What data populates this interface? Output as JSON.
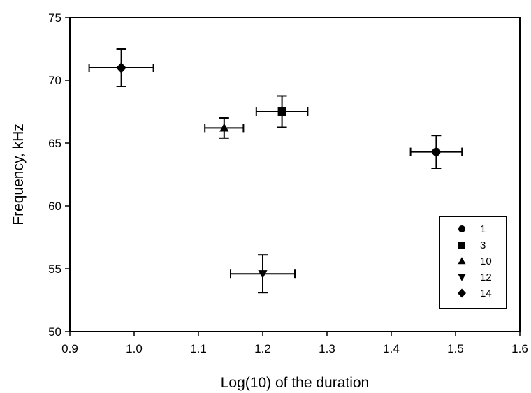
{
  "chart_data": {
    "type": "scatter",
    "xlabel": "Log(10) of the duration",
    "ylabel": "Frequency, kHz",
    "xlim": [
      0.9,
      1.6
    ],
    "ylim": [
      50,
      75
    ],
    "xticks": [
      "0.9",
      "1.0",
      "1.1",
      "1.2",
      "1.3",
      "1.4",
      "1.5",
      "1.6"
    ],
    "yticks": [
      "50",
      "55",
      "60",
      "65",
      "70",
      "75"
    ],
    "grid": false,
    "legend_position": "bottom-right",
    "series": [
      {
        "name": "1",
        "marker": "circle",
        "x": 1.47,
        "y": 64.3,
        "x_err": 0.04,
        "y_err": 1.3
      },
      {
        "name": "3",
        "marker": "square",
        "x": 1.23,
        "y": 67.5,
        "x_err": 0.04,
        "y_err": 1.25
      },
      {
        "name": "10",
        "marker": "triangle-up",
        "x": 1.14,
        "y": 66.2,
        "x_err": 0.03,
        "y_err": 0.8
      },
      {
        "name": "12",
        "marker": "triangle-down",
        "x": 1.2,
        "y": 54.6,
        "x_err": 0.05,
        "y_err": 1.5
      },
      {
        "name": "14",
        "marker": "diamond",
        "x": 0.98,
        "y": 71.0,
        "x_err": 0.05,
        "y_err": 1.5
      }
    ]
  }
}
